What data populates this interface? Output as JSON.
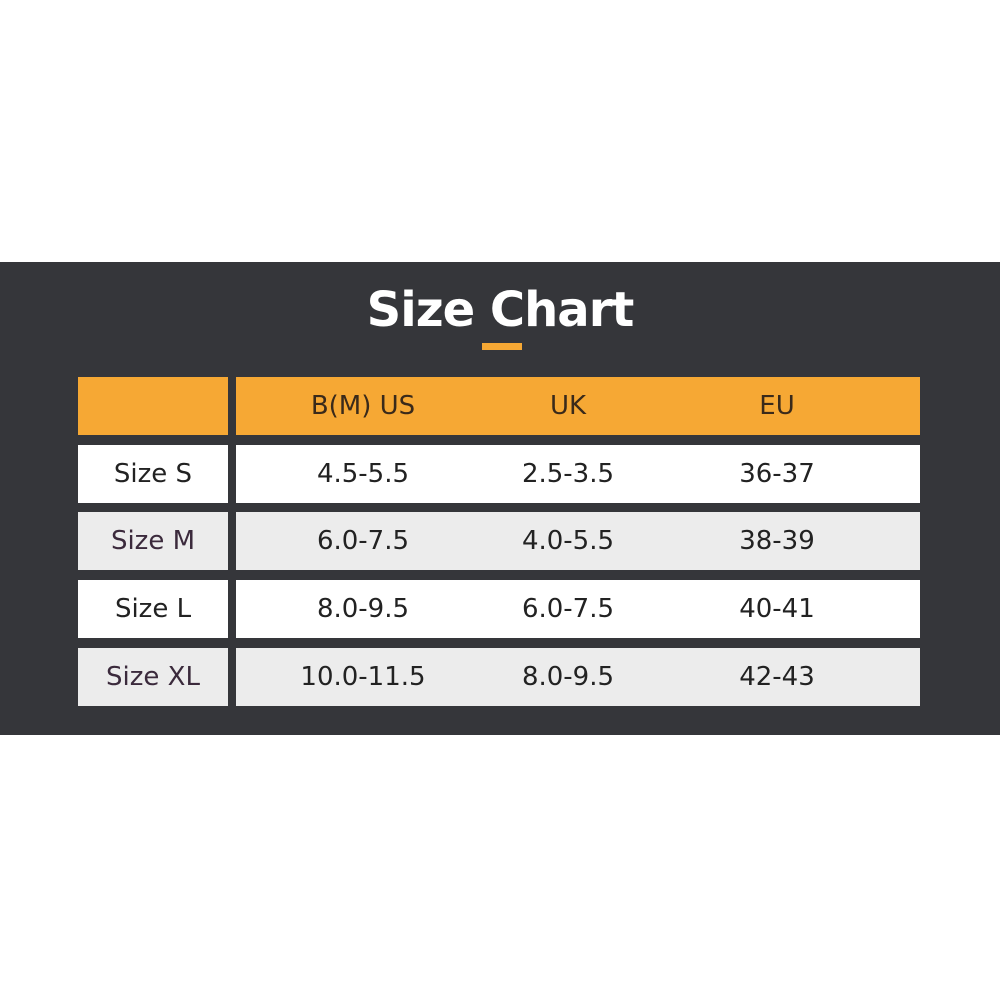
{
  "title": "Size Chart",
  "colors": {
    "background_band": "#35363a",
    "accent": "#f6a834",
    "row_white": "#ffffff",
    "row_gray": "#ececec"
  },
  "table": {
    "headers": [
      "",
      "B(M) US",
      "UK",
      "EU"
    ],
    "rows": [
      {
        "size": "Size S",
        "us": "4.5-5.5",
        "uk": "2.5-3.5",
        "eu": "36-37"
      },
      {
        "size": "Size M",
        "us": "6.0-7.5",
        "uk": "4.0-5.5",
        "eu": "38-39"
      },
      {
        "size": "Size L",
        "us": "8.0-9.5",
        "uk": "6.0-7.5",
        "eu": "40-41"
      },
      {
        "size": "Size XL",
        "us": "10.0-11.5",
        "uk": "8.0-9.5",
        "eu": "42-43"
      }
    ]
  }
}
